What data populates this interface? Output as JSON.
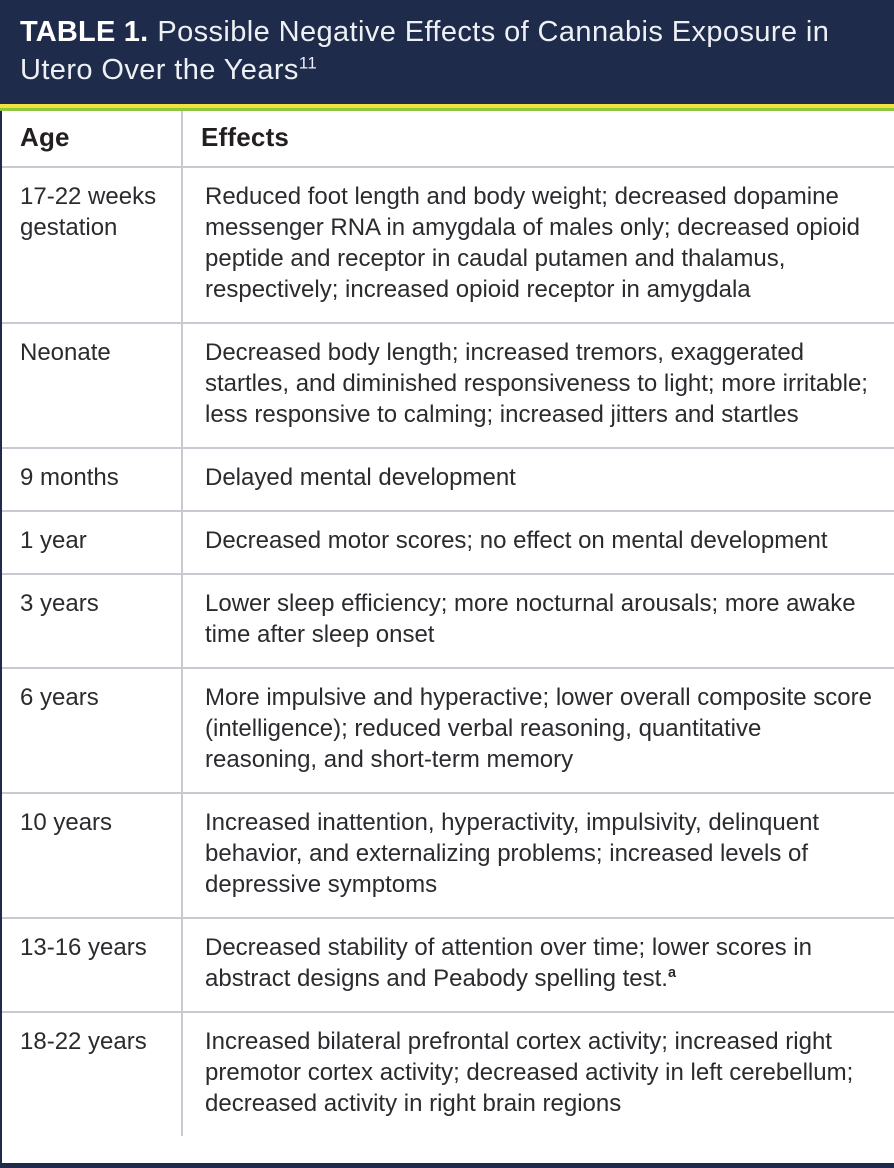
{
  "header": {
    "label": "TABLE 1.",
    "title": "Possible Negative Effects of Cannabis Exposure in Utero Over the Years",
    "reference": "11"
  },
  "colors": {
    "header_bg": "#1F2B4A",
    "accent_yellow": "#F4E13F",
    "accent_green": "#8DC63F",
    "row_divider": "#C9C9D1",
    "body_text": "#2B2A2E",
    "heading_text": "#231F20"
  },
  "table": {
    "columns": [
      "Age",
      "Effects"
    ],
    "rows": [
      {
        "age": "17-22 weeks gestation",
        "effects": "Reduced foot length and body weight; decreased dopamine messenger RNA in amygdala of males only; decreased opioid peptide and receptor in caudal putamen and thalamus, respectively; increased opioid receptor in amygdala"
      },
      {
        "age": "Neonate",
        "effects": "Decreased body length; increased tremors, exaggerated startles, and diminished responsiveness to light; more irritable; less responsive to calming; increased jitters and startles"
      },
      {
        "age": "9 months",
        "effects": "Delayed mental development"
      },
      {
        "age": "1 year",
        "effects": "Decreased motor scores; no effect on mental development"
      },
      {
        "age": "3 years",
        "effects": "Lower sleep efficiency; more nocturnal arousals; more awake time after sleep onset"
      },
      {
        "age": "6 years",
        "effects": "More impulsive and hyperactive; lower overall composite score (intelligence); reduced verbal reasoning, quantitative reasoning, and short-term memory"
      },
      {
        "age": "10 years",
        "effects": "Increased inattention, hyperactivity, impulsivity, delinquent behavior, and externalizing problems; increased levels of depressive symptoms"
      },
      {
        "age": "13-16 years",
        "effects": "Decreased stability of attention over time; lower scores in abstract designs and Peabody spelling test.",
        "effects_sup": "a"
      },
      {
        "age": "18-22 years",
        "effects": "Increased bilateral prefrontal cortex activity; increased right premotor cortex activity; decreased activity in left cerebellum; decreased activity in right brain regions"
      }
    ]
  }
}
